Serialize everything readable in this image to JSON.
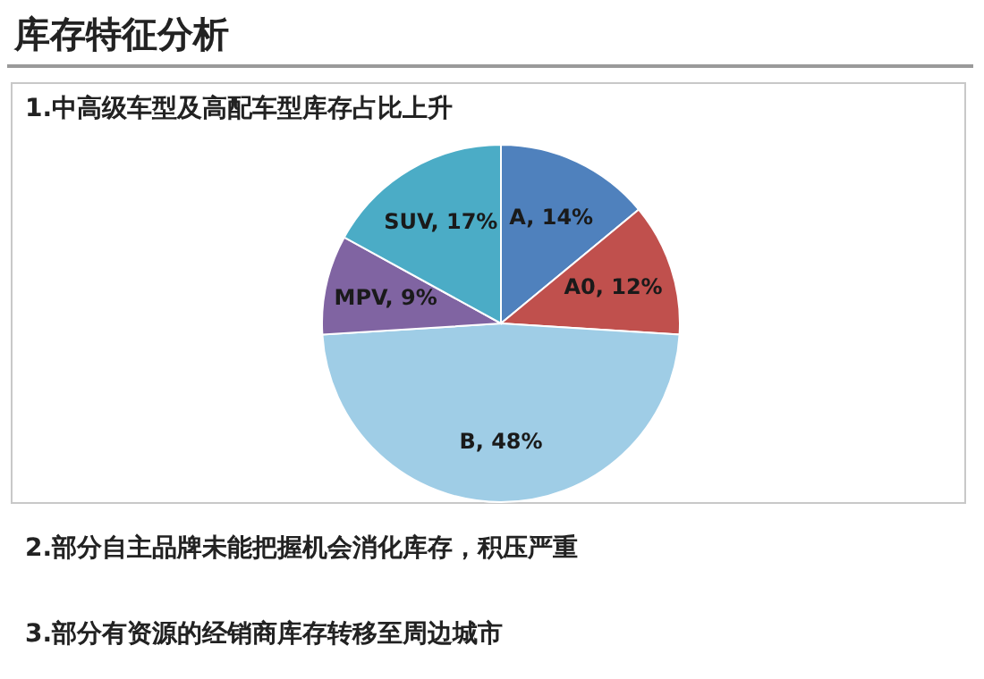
{
  "chart_data": {
    "type": "pie",
    "title": "库存特征分析",
    "subtitle": "1.中高级车型及高配车型库存占比上升",
    "categories": [
      "A",
      "A0",
      "B",
      "MPV",
      "SUV"
    ],
    "values": [
      14,
      12,
      48,
      9,
      17
    ],
    "colors": [
      "#4f81bd",
      "#c0504d",
      "#9fcde6",
      "#8064a2",
      "#4bacc6"
    ],
    "value_labels": [
      "14%",
      "12%",
      "48%",
      "9%",
      "17%"
    ],
    "annotations": [
      "2.部分自主品牌未能把握机会消化库存，积压严重",
      "3.部分有资源的经销商库存转移至周边城市"
    ],
    "legend": false
  }
}
